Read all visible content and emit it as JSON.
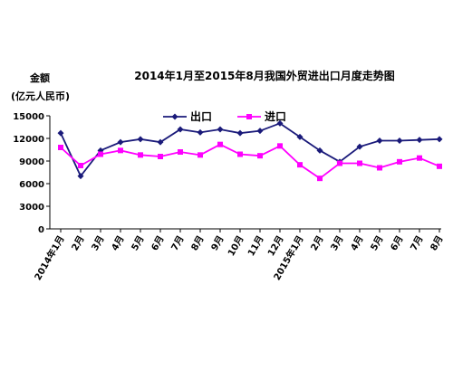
{
  "chart_data": {
    "type": "line",
    "title": "2014年1月至2015年8月我国外贸进出口月度走势图",
    "ylabel_line1": "金额",
    "ylabel_line2": "(亿元人民币)",
    "ylim": [
      0,
      15000
    ],
    "yticks": [
      0,
      3000,
      6000,
      9000,
      12000,
      15000
    ],
    "grid": false,
    "legend_position": "top-center",
    "categories": [
      "2014年1月",
      "2月",
      "3月",
      "4月",
      "5月",
      "6月",
      "7月",
      "8月",
      "9月",
      "10月",
      "11月",
      "12月",
      "2015年1月",
      "2月",
      "3月",
      "4月",
      "5月",
      "6月",
      "7月",
      "8月"
    ],
    "series": [
      {
        "name": "出口",
        "color": "#1a1a7a",
        "marker": "diamond",
        "values": [
          12700,
          7000,
          10400,
          11500,
          11900,
          11500,
          13200,
          12800,
          13200,
          12700,
          13000,
          14000,
          12200,
          10400,
          8900,
          10900,
          11700,
          11700,
          11800,
          11900
        ]
      },
      {
        "name": "进口",
        "color": "#ff00ff",
        "marker": "square",
        "values": [
          10800,
          8400,
          9900,
          10400,
          9800,
          9600,
          10200,
          9800,
          11200,
          9900,
          9700,
          11000,
          8500,
          6700,
          8700,
          8700,
          8100,
          8900,
          9400,
          8300
        ]
      }
    ]
  }
}
